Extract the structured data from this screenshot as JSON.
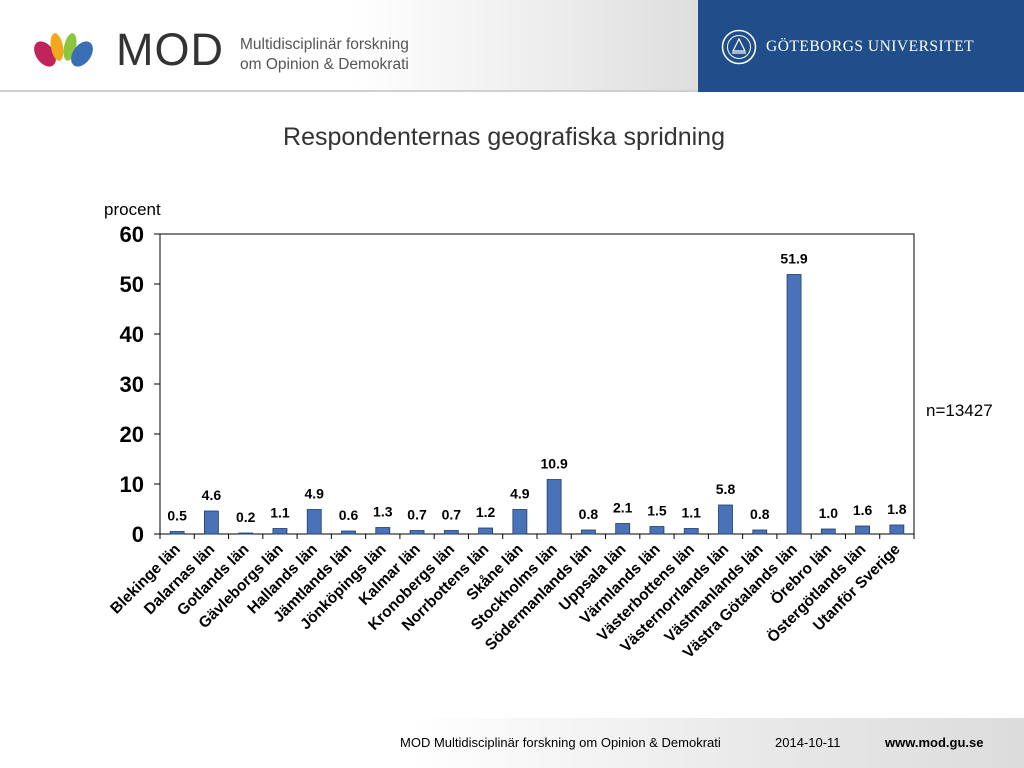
{
  "header": {
    "mod_wordmark": "MOD",
    "mod_tagline_line1": "Multidisciplinär forskning",
    "mod_tagline_line2": "om Opinion & Demokrati",
    "university_name": "GÖTEBORGS UNIVERSITET",
    "university_color": "#1f4e8a"
  },
  "title": "Respondenternas geografiska spridning",
  "y_unit": "procent",
  "n_note": "n=13427",
  "chart_data": {
    "type": "bar",
    "title": "Respondenternas geografiska spridning",
    "ylabel": "procent",
    "xlabel": "",
    "ylim": [
      0,
      60
    ],
    "yticks": [
      0,
      10,
      20,
      30,
      40,
      50,
      60
    ],
    "grid": false,
    "bar_color": "#4a72b8",
    "categories": [
      "Blekinge län",
      "Dalarnas län",
      "Gotlands län",
      "Gävleborgs län",
      "Hallands län",
      "Jämtlands län",
      "Jönköpings län",
      "Kalmar län",
      "Kronobergs län",
      "Norrbottens län",
      "Skåne län",
      "Stockholms län",
      "Södermanlands län",
      "Uppsala län",
      "Värmlands län",
      "Västerbottens län",
      "Västernorrlands län",
      "Västmanlands län",
      "Västra Götalands län",
      "Örebro län",
      "Östergötlands län",
      "Utanför Sverige"
    ],
    "values": [
      0.5,
      4.6,
      0.2,
      1.1,
      4.9,
      0.6,
      1.3,
      0.7,
      0.7,
      1.2,
      4.9,
      10.9,
      0.8,
      2.1,
      1.5,
      1.1,
      5.8,
      0.8,
      51.9,
      1.0,
      1.6,
      1.8
    ],
    "value_labels": [
      "0.5",
      "4.6",
      "0.2",
      "1.1",
      "4.9",
      "0.6",
      "1.3",
      "0.7",
      "0.7",
      "1.2",
      "4.9",
      "10.9",
      "0.8",
      "2.1",
      "1.5",
      "1.1",
      "5.8",
      "0.8",
      "51.9",
      "1.0",
      "1.6",
      "1.8"
    ],
    "annotations": [
      "n=13427"
    ]
  },
  "footer": {
    "organization": "MOD Multidisciplinär forskning om Opinion & Demokrati",
    "date": "2014-10-11",
    "url": "www.mod.gu.se"
  }
}
